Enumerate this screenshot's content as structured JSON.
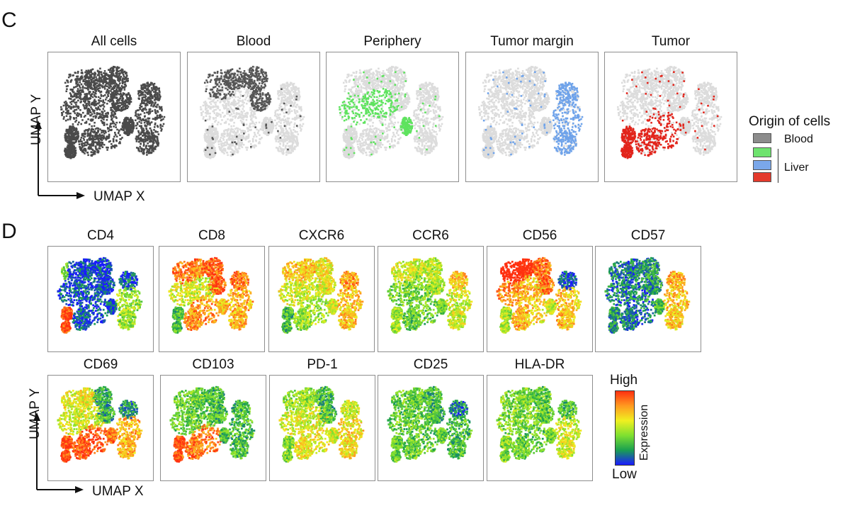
{
  "panel_c": {
    "letter": "C",
    "umaps": [
      {
        "title": "All cells",
        "mode": "all"
      },
      {
        "title": "Blood",
        "mode": "highlight",
        "highlight": "blood"
      },
      {
        "title": "Periphery",
        "mode": "highlight",
        "highlight": "periphery"
      },
      {
        "title": "Tumor margin",
        "mode": "highlight",
        "highlight": "margin"
      },
      {
        "title": "Tumor",
        "mode": "highlight",
        "highlight": "tumor"
      }
    ],
    "axis_x": "UMAP X",
    "axis_y": "UMAP Y",
    "legend": {
      "title": "Origin of cells",
      "items": [
        {
          "label": "Blood",
          "color": "#8c8c8c"
        },
        {
          "label": "",
          "color": "#6ee36e"
        },
        {
          "label": "Liver",
          "color": "#7aa7ea"
        },
        {
          "label": "",
          "color": "#e4392b"
        }
      ],
      "group_label": "Liver"
    },
    "colors": {
      "all": "#4a4a4a",
      "background": "#dcdcdc",
      "blood": "#555555",
      "periphery": "#5ee35e",
      "margin": "#6fa3ea",
      "tumor": "#e2241b"
    }
  },
  "panel_d": {
    "letter": "D",
    "markers": [
      "CD4",
      "CD8",
      "CXCR6",
      "CCR6",
      "CD56",
      "CD57",
      "CD69",
      "CD103",
      "PD-1",
      "CD25",
      "HLA-DR"
    ],
    "axis_x": "UMAP X",
    "axis_y": "UMAP Y",
    "colorbar": {
      "high": "High",
      "low": "Low",
      "label": "Expression",
      "colors": [
        "#1a1aff",
        "#1aa050",
        "#7fe030",
        "#f0f020",
        "#ff9a20",
        "#ff3010"
      ]
    }
  }
}
